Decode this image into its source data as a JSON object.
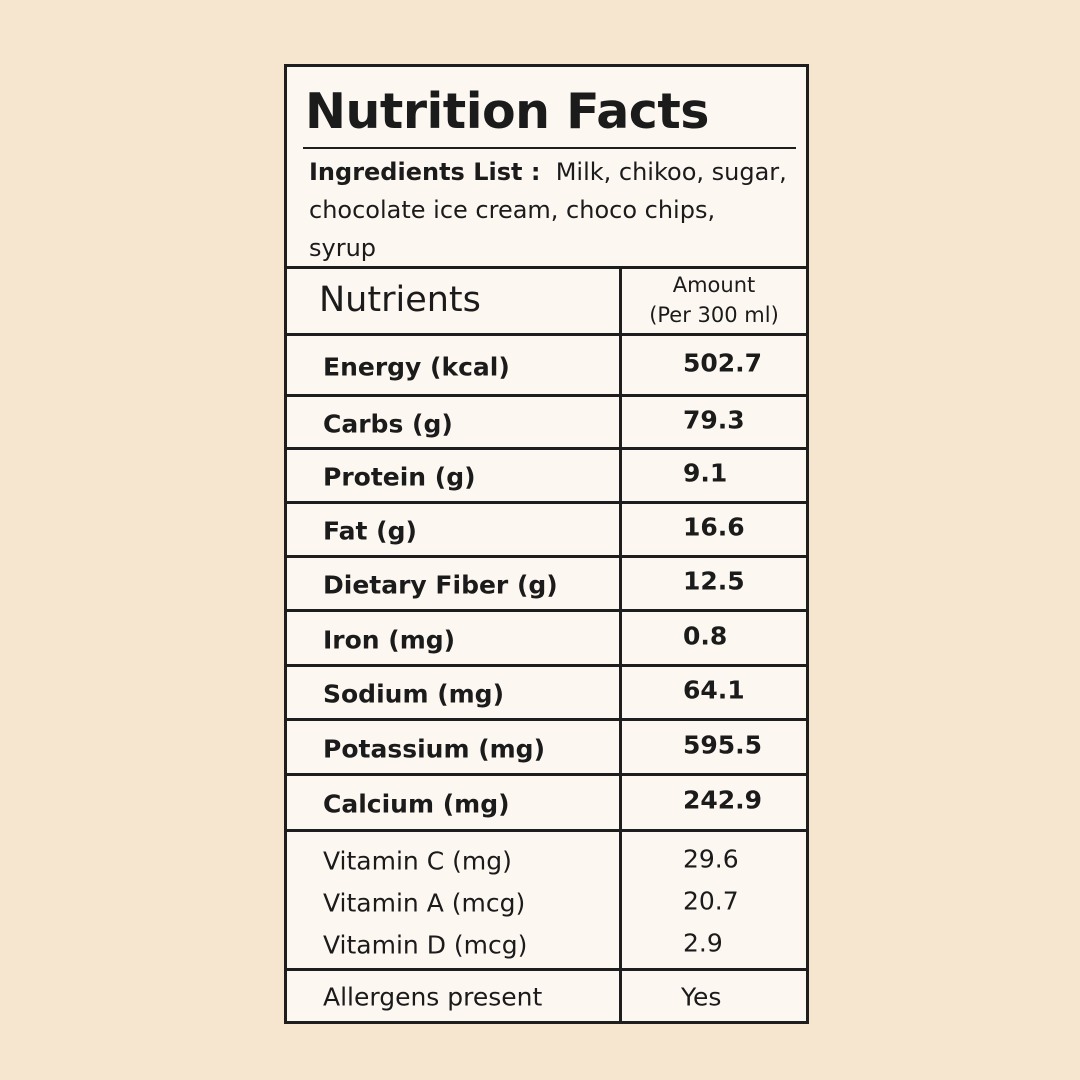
{
  "title": "Nutrition Facts",
  "ingredients": {
    "label": "Ingredients List :",
    "text": "Milk, chikoo, sugar, chocolate ice cream, choco chips, syrup"
  },
  "table": {
    "header": {
      "nutrients": "Nutrients",
      "amount": [
        "Amount",
        "(Per 300 ml)"
      ]
    },
    "rows": [
      [
        "Energy (kcal)",
        502.7
      ],
      [
        "Carbs (g)",
        79.3
      ],
      [
        "Protein (g)",
        9.1
      ],
      [
        "Fat (g)",
        16.6
      ],
      [
        "Dietary Fiber (g)",
        12.5
      ],
      [
        "Iron (mg)",
        0.8
      ],
      [
        "Sodium (mg)",
        64.1
      ],
      [
        "Potassium (mg)",
        595.5
      ],
      [
        "Calcium (mg)",
        242.9
      ]
    ],
    "vitamins": [
      [
        "Vitamin C (mg)",
        29.6
      ],
      [
        "Vitamin A (mcg)",
        20.7
      ],
      [
        "Vitamin D (mcg)",
        2.9
      ]
    ],
    "allergens": [
      "Allergens present",
      "Yes"
    ]
  }
}
